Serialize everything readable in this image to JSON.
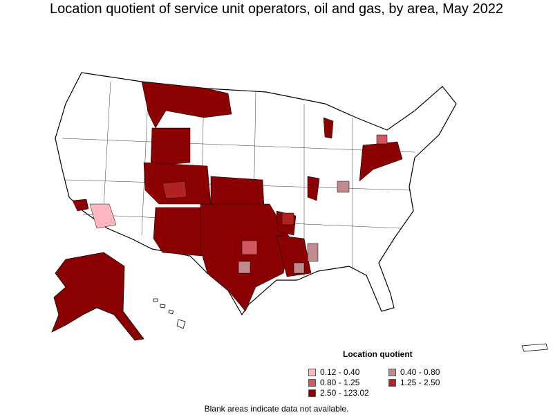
{
  "title": "Location quotient of service unit operators, oil and gas, by area, May 2022",
  "legend": {
    "title": "Location quotient",
    "items": [
      {
        "label": "0.12 - 0.40",
        "color": "#ffb6c1"
      },
      {
        "label": "0.40 - 0.80",
        "color": "#c08a8f"
      },
      {
        "label": "0.80 - 1.25",
        "color": "#d2575f"
      },
      {
        "label": "1.25 - 2.50",
        "color": "#b22222"
      },
      {
        "label": "2.50 - 123.02",
        "color": "#8b0000"
      }
    ]
  },
  "footnote": "Blank areas indicate data not available.",
  "colors": {
    "outline": "#000000",
    "background": "#ffffff"
  }
}
